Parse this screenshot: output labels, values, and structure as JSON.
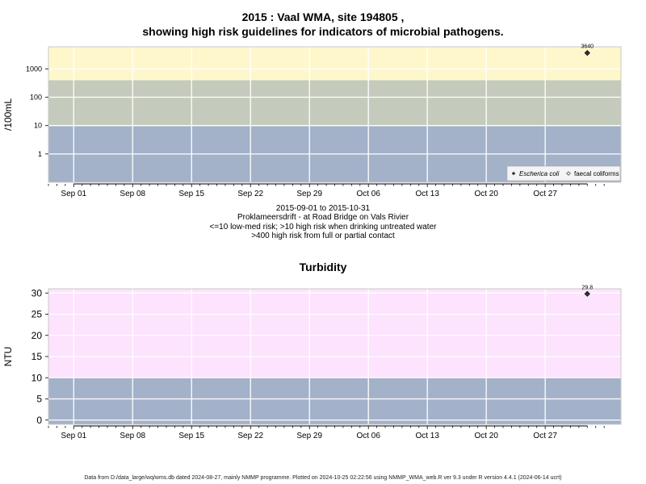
{
  "chart_data": [
    {
      "type": "scatter",
      "title_line1": "2015 : Vaal WMA, site 194805 ,",
      "title_line2": "showing high risk guidelines for indicators of microbial pathogens.",
      "ylabel": "/100mL",
      "yscale": "log",
      "yticks": [
        1,
        10,
        100,
        1000
      ],
      "ytick_labels": [
        "1",
        "10",
        "100",
        "1000"
      ],
      "ylim": [
        0.1,
        6000
      ],
      "xtick_labels": [
        "Sep 01",
        "Sep 08",
        "Sep 15",
        "Sep 22",
        "Sep 29",
        "Oct 06",
        "Oct 13",
        "Oct 20",
        "Oct 27"
      ],
      "xlim": [
        "2015-08-29",
        "2015-11-05"
      ],
      "bands": [
        {
          "from": 0.1,
          "to": 10,
          "color": "#a3b2c9"
        },
        {
          "from": 10,
          "to": 400,
          "color": "#c5cbbc"
        },
        {
          "from": 400,
          "to": 6000,
          "color": "#fef7cc"
        }
      ],
      "series": [
        {
          "name": "Escherica coli",
          "marker": "filled-diamond",
          "points": [
            {
              "x": "2015-11-01",
              "y": 3640,
              "label": "3640"
            }
          ]
        },
        {
          "name": "faecal coliforms",
          "marker": "open-diamond",
          "points": []
        }
      ],
      "legend_position": "bottom-right",
      "grid": true,
      "caption": [
        "2015-09-01 to 2015-10-31",
        "Proklameersdrift - at Road Bridge on Vals Rivier",
        "<=10 low-med risk; >10 high risk when drinking untreated water",
        ">400 high risk from full or partial contact"
      ]
    },
    {
      "type": "scatter",
      "title": "Turbidity",
      "ylabel": "NTU",
      "yticks": [
        0,
        5,
        10,
        15,
        20,
        25,
        30
      ],
      "ytick_labels": [
        "0",
        "5",
        "10",
        "15",
        "20",
        "25",
        "30"
      ],
      "ylim": [
        -1,
        31
      ],
      "xtick_labels": [
        "Sep 01",
        "Sep 08",
        "Sep 15",
        "Sep 22",
        "Sep 29",
        "Oct 06",
        "Oct 13",
        "Oct 20",
        "Oct 27"
      ],
      "xlim": [
        "2015-08-29",
        "2015-11-05"
      ],
      "bands": [
        {
          "from": -1,
          "to": 10,
          "color": "#a3b2c9"
        },
        {
          "from": 10,
          "to": 31,
          "color": "#fde3fd"
        }
      ],
      "series": [
        {
          "name": "",
          "marker": "filled-diamond",
          "points": [
            {
              "x": "2015-11-01",
              "y": 29.8,
              "label": "29.8"
            }
          ]
        }
      ],
      "grid": true
    }
  ],
  "footer": "Data from D:/data_large/wq/wms.db dated 2024-08-27, mainly NMMP programme. Plotted on 2024-10-25 02:22:56 using NMMP_WMA_web.R ver 9.3 under R version 4.4.1 (2024-06-14 ucrt)"
}
